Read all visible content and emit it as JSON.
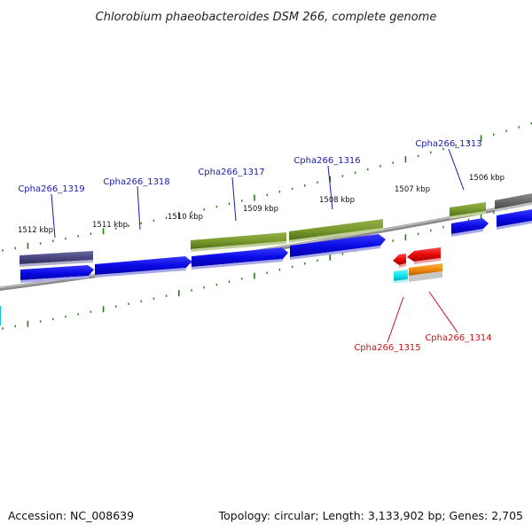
{
  "title": "Chlorobium phaeobacteroides DSM 266, complete genome",
  "footer": {
    "accession": "Accession: NC_008639",
    "summary": "Topology: circular; Length: 3,133,902 bp; Genes: 2,705"
  },
  "scale_labels": [
    "1512 kbp",
    "1511 kbp",
    "1510 kbp",
    "1509 kbp",
    "1508 kbp",
    "1507 kbp",
    "1506 kbp"
  ],
  "gene_labels_top": [
    "Cpha266_1319",
    "Cpha266_1318",
    "Cpha266_1317",
    "Cpha266_1316",
    "Cpha266_1313"
  ],
  "gene_labels_bottom": [
    "Cpha266_1315",
    "Cpha266_1314"
  ],
  "colors": {
    "cds_forward": "#0a0ae6",
    "cog_olive": "#7a9a2e",
    "cog_slate": "#4a4880",
    "cog_gray": "#6a6a6a",
    "cds_reverse": "#e60a0a",
    "cog_cyan": "#12e6f0",
    "cog_orange": "#f08a0a",
    "backbone": "#808080",
    "ticks": "#2a7a1a",
    "label_top": "#1a1ab0",
    "label_bottom": "#c81414"
  }
}
